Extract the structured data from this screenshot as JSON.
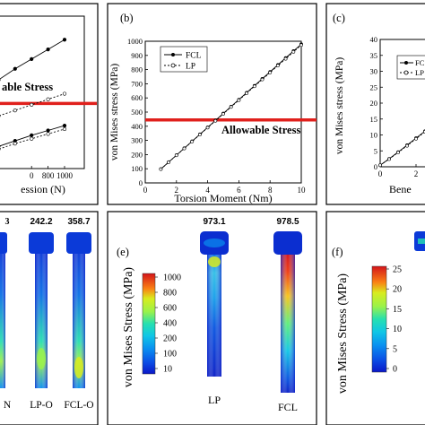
{
  "panel_labels": {
    "b": "(b)",
    "c": "(c)",
    "e": "(e)",
    "f": "(f)"
  },
  "colors": {
    "allowable": "#e0201c",
    "series": "#000000",
    "cmap": [
      "#0b17c8",
      "#0b50e6",
      "#0a8ff0",
      "#10c6e6",
      "#26e0b0",
      "#5cf07a",
      "#9af24a",
      "#d8ec1e",
      "#f8c41a",
      "#fa8014",
      "#f03a12",
      "#d4141a"
    ]
  },
  "chart_data": [
    {
      "id": "a",
      "type": "line",
      "xlabel_fragment": "ession (N)",
      "x_ticks_visible": [
        "0",
        "800",
        "1000"
      ],
      "annotation": "able Stress",
      "series": [
        {
          "x": [
            0,
            200,
            400,
            600,
            800,
            1000
          ],
          "values": [
            560,
            640,
            720,
            790,
            860,
            930
          ]
        },
        {
          "x": [
            0,
            200,
            400,
            600,
            800,
            1000
          ],
          "values": [
            340,
            380,
            420,
            460,
            500,
            540
          ]
        },
        {
          "x": [
            0,
            200,
            400,
            600,
            800,
            1000
          ],
          "values": [
            120,
            160,
            200,
            240,
            275,
            310
          ]
        },
        {
          "x": [
            0,
            200,
            400,
            600,
            800,
            1000
          ],
          "values": [
            100,
            140,
            180,
            215,
            250,
            285
          ]
        }
      ],
      "allowable": 470
    },
    {
      "id": "b",
      "type": "line",
      "xlabel": "Torsion Moment (Nm)",
      "ylabel": "von Mises stress (MPa)",
      "xlim": [
        0,
        10
      ],
      "ylim": [
        0,
        1000
      ],
      "x_ticks": [
        "0",
        "2",
        "4",
        "6",
        "8",
        "10"
      ],
      "y_ticks": [
        "0",
        "100",
        "200",
        "300",
        "400",
        "500",
        "600",
        "700",
        "800",
        "900",
        "1000"
      ],
      "annotation": "Allowable Stress",
      "allowable": 445,
      "legend": [
        "FCL",
        "LP"
      ],
      "series": [
        {
          "name": "FCL",
          "marker": "filled",
          "x": [
            1,
            1.5,
            2,
            2.5,
            3,
            3.5,
            4,
            4.5,
            5,
            5.5,
            6,
            6.5,
            7,
            7.5,
            8,
            8.5,
            9,
            9.5,
            10
          ],
          "values": [
            98,
            147,
            196,
            245,
            294,
            343,
            392,
            441,
            490,
            539,
            588,
            637,
            686,
            735,
            784,
            833,
            882,
            931,
            979
          ]
        },
        {
          "name": "LP",
          "marker": "open",
          "x": [
            1,
            1.5,
            2,
            2.5,
            3,
            3.5,
            4,
            4.5,
            5,
            5.5,
            6,
            6.5,
            7,
            7.5,
            8,
            8.5,
            9,
            9.5,
            10
          ],
          "values": [
            97,
            146,
            195,
            243,
            292,
            341,
            390,
            438,
            487,
            536,
            584,
            633,
            682,
            730,
            779,
            828,
            876,
            925,
            973
          ]
        }
      ]
    },
    {
      "id": "c",
      "type": "line",
      "xlabel_fragment": "Bene",
      "ylabel": "von Mises stress (MPa)",
      "ylim": [
        0,
        40
      ],
      "y_ticks": [
        "0",
        "5",
        "10",
        "15",
        "20",
        "25",
        "30",
        "35",
        "40"
      ],
      "x_ticks_visible": [
        "0",
        "2"
      ],
      "legend": [
        "FC",
        "LP"
      ],
      "series": [
        {
          "name": "FC",
          "x": [
            0,
            0.5,
            1,
            1.5,
            2,
            2.5,
            3
          ],
          "values": [
            0.5,
            2.5,
            4.6,
            6.8,
            9,
            11.2,
            13.4
          ]
        },
        {
          "name": "LP",
          "x": [
            0,
            0.5,
            1,
            1.5,
            2,
            2.5,
            3
          ],
          "values": [
            0.5,
            2.4,
            4.5,
            6.6,
            8.8,
            11,
            13.1
          ]
        }
      ]
    }
  ],
  "panel_d": {
    "labels": [
      "N",
      "LP-O",
      "FCL-O"
    ],
    "values": [
      "3",
      "242.2",
      "358.7"
    ]
  },
  "panel_e": {
    "colorbar_title": "von Mises Stress (MPa)",
    "colorbar_ticks": [
      "1000",
      "800",
      "600",
      "400",
      "200",
      "100",
      "10"
    ],
    "models": [
      {
        "label": "LP",
        "value": "973.1"
      },
      {
        "label": "FCL",
        "value": "978.5"
      }
    ]
  },
  "panel_f": {
    "colorbar_title": "von Mises Stress (MPa)",
    "colorbar_ticks": [
      "25",
      "20",
      "15",
      "10",
      "5",
      "0"
    ]
  }
}
